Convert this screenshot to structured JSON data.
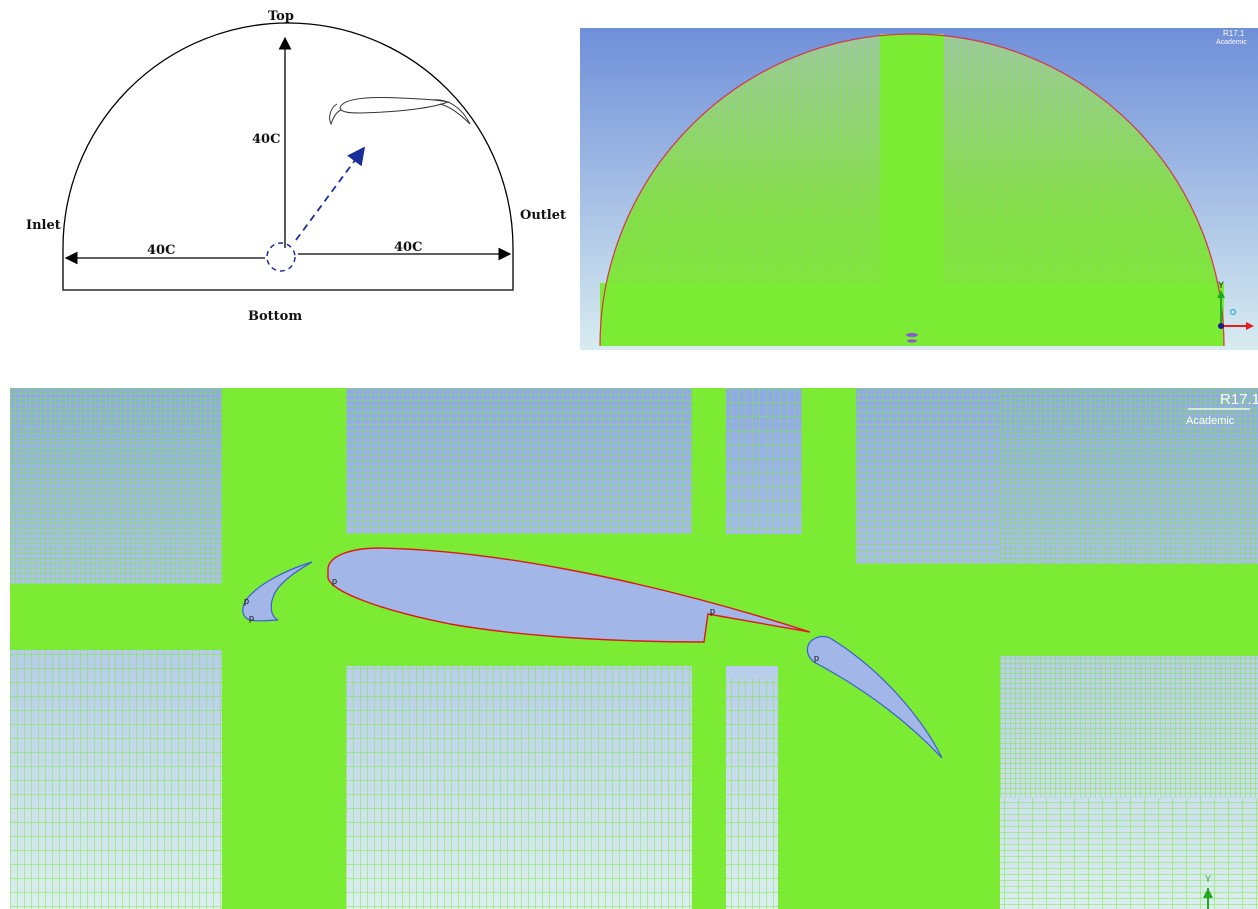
{
  "sketch": {
    "label_top": "Top",
    "label_bottom": "Bottom",
    "label_inlet": "Inlet",
    "label_outlet": "Outlet",
    "dim_vertical": "40C",
    "dim_left": "40C",
    "dim_right": "40C"
  },
  "overview": {
    "version_text": "R17.1",
    "license_text": "Academic",
    "axis_y_label": "Y"
  },
  "zoom": {
    "version_text": "R17.1",
    "license_text": "Academic",
    "axis_y_label": "Y",
    "point_marker": "p"
  },
  "colors": {
    "mesh_green": "#7ceb33",
    "sky_top": "#6f8fd9",
    "sky_bottom": "#d8ecf0",
    "airfoil_fill": "#a3b6e8",
    "airfoil_edge": "#e01818",
    "sketch_line": "#000000",
    "dashed_blue": "#1a2e9a"
  }
}
